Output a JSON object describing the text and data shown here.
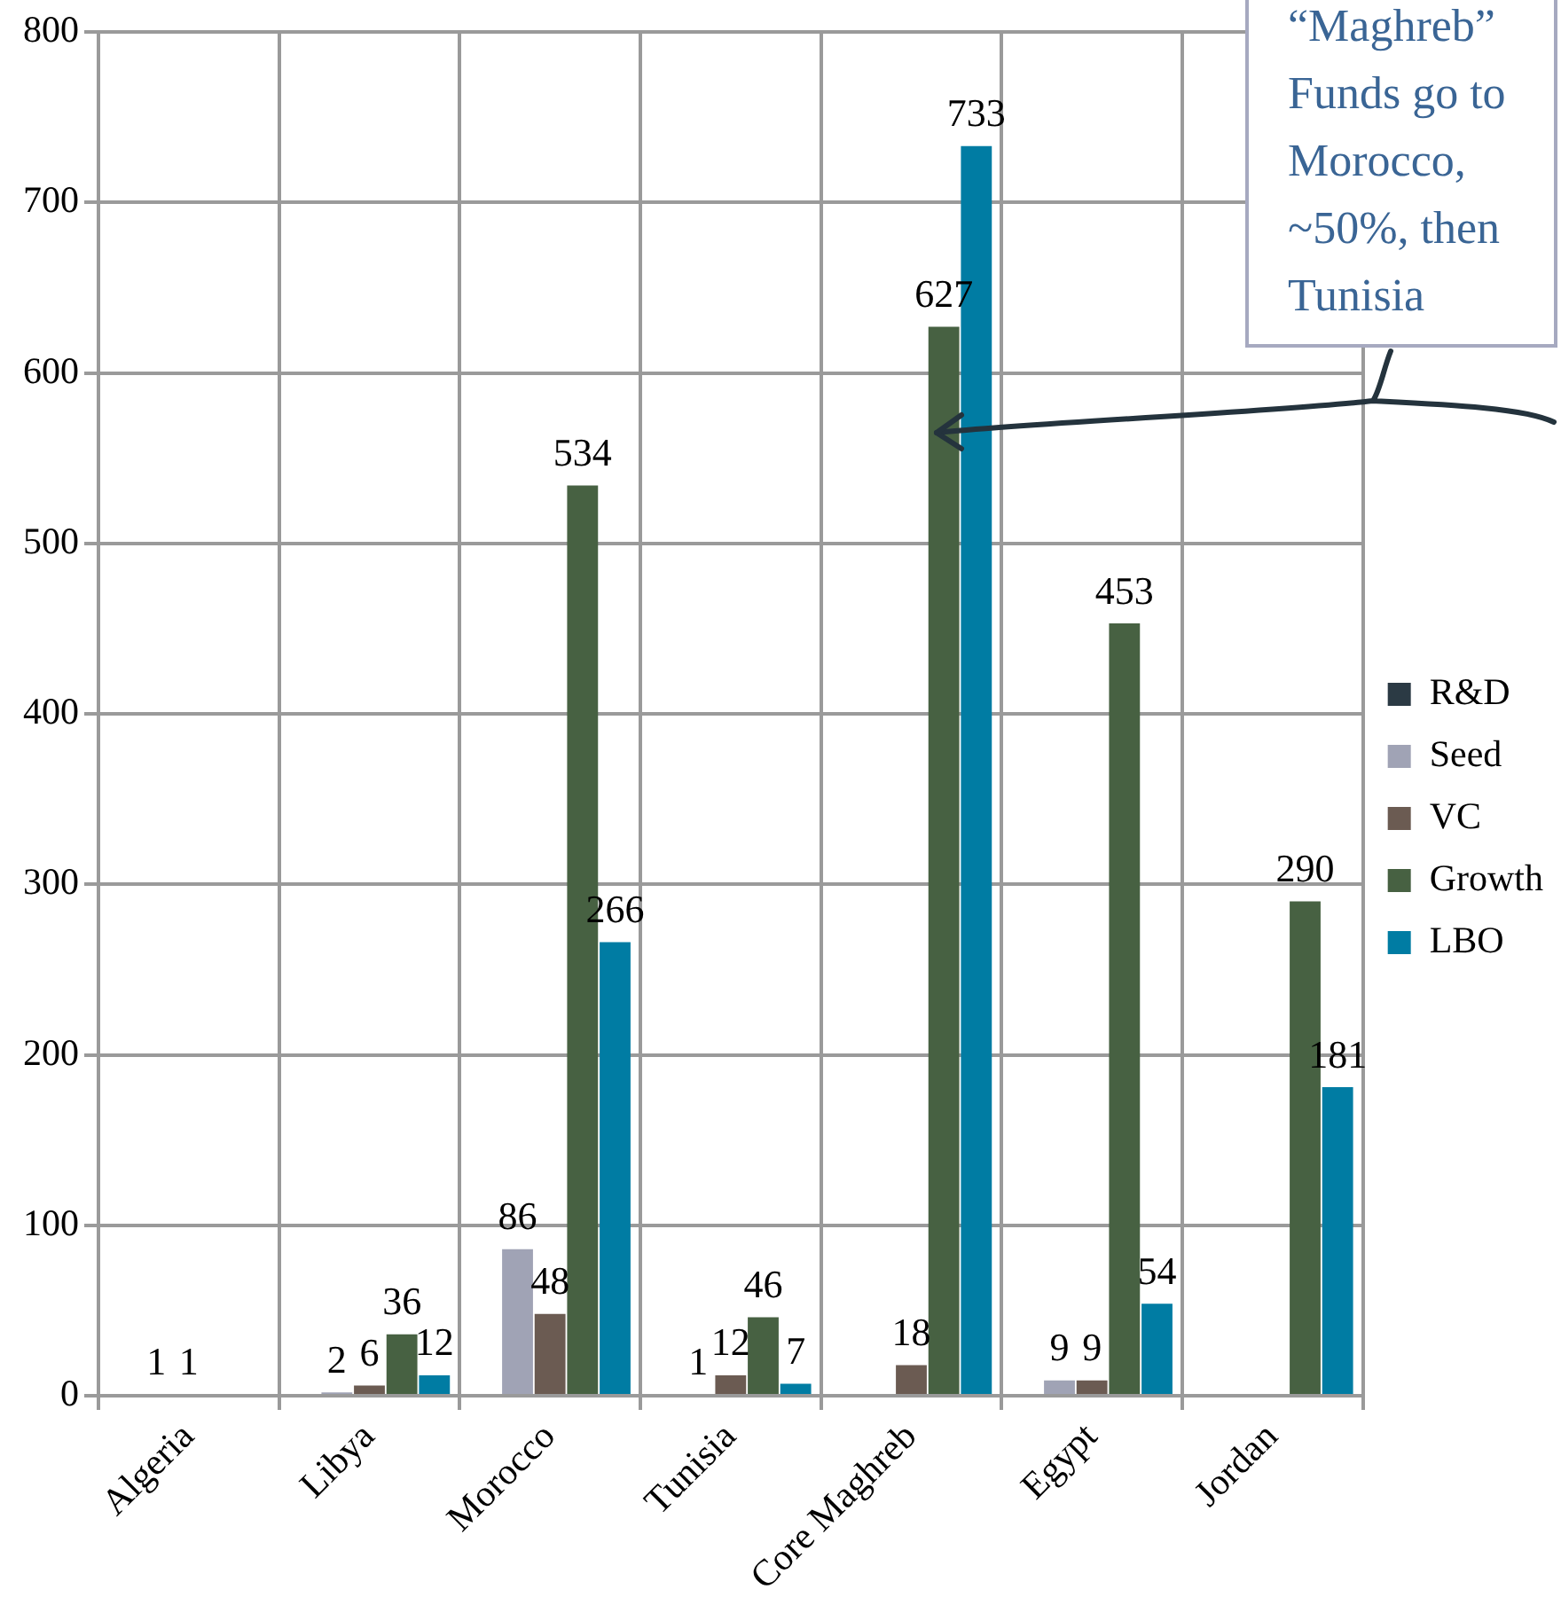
{
  "chart_data": {
    "type": "bar",
    "categories": [
      "Algeria",
      "Libya",
      "Morocco",
      "Tunisia",
      "Core Maghreb",
      "Egypt",
      "Jordan"
    ],
    "series": [
      {
        "name": "R&D",
        "color": "#2b3a44",
        "values": [
          null,
          null,
          null,
          null,
          null,
          null,
          null
        ],
        "value_labels": [
          null,
          null,
          null,
          null,
          null,
          null,
          null
        ]
      },
      {
        "name": "Seed",
        "color": "#a0a3b5",
        "values": [
          1,
          2,
          86,
          1,
          null,
          9,
          null
        ],
        "value_labels": [
          "1",
          "2",
          "86",
          "1",
          null,
          "9",
          null
        ]
      },
      {
        "name": "VC",
        "color": "#6b5b52",
        "values": [
          1,
          6,
          48,
          12,
          18,
          9,
          null
        ],
        "value_labels": [
          "1",
          "6",
          "48",
          "12",
          "18",
          "9",
          null
        ]
      },
      {
        "name": "Growth",
        "color": "#476142",
        "values": [
          null,
          36,
          534,
          46,
          627,
          453,
          290
        ],
        "value_labels": [
          null,
          "36",
          "534",
          "46",
          "627",
          "453",
          "290"
        ]
      },
      {
        "name": "LBO",
        "color": "#007ca3",
        "values": [
          null,
          12,
          266,
          7,
          733,
          54,
          181
        ],
        "value_labels": [
          null,
          "12",
          "266",
          "7",
          "733",
          "54",
          "181"
        ]
      }
    ],
    "ylim": [
      0,
      800
    ],
    "yticks": [
      0,
      100,
      200,
      300,
      400,
      500,
      600,
      700,
      800
    ],
    "grid": true,
    "legend": "right",
    "annotations": [
      "“Maghreb” Funds go to Morocco, ~50%, then Tunisia"
    ]
  }
}
